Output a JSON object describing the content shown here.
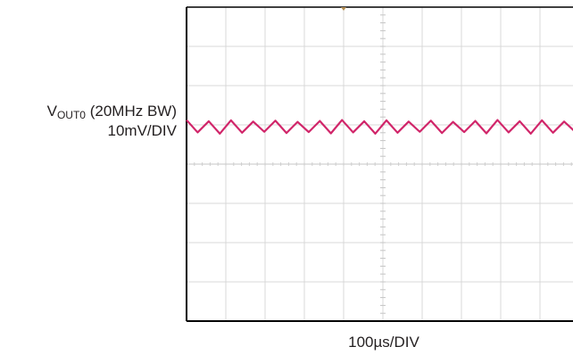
{
  "chart_data": {
    "type": "line",
    "signal_name": "V",
    "signal_subscript": "OUT0",
    "bandwidth_note": "(20MHz BW)",
    "ylabel": "10mV/DIV",
    "xlabel": "100µs/DIV",
    "divisions": {
      "x": 10,
      "y": 8
    },
    "ground_marker_division": 3,
    "trigger_marker_division": 4,
    "waveform": {
      "type": "triangle",
      "periods_visible_from_frame_left": 17.4,
      "offset_div": 3.05,
      "amplitude_div_pp": 0.3,
      "color": "#d1266a"
    },
    "colors": {
      "frame": "#000000",
      "grid": "#d9d9d9",
      "text": "#231f20",
      "marker": "#b08b50"
    }
  }
}
